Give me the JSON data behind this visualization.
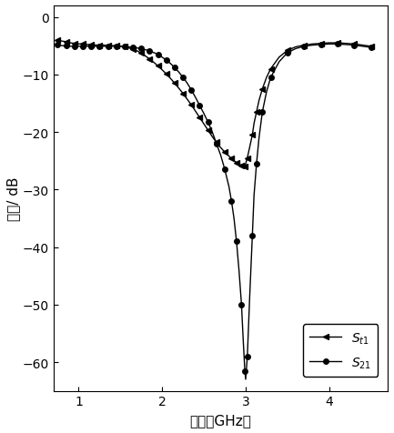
{
  "title": "",
  "xlabel": "频率（GHz）",
  "ylabel": "幅度/ dB",
  "xlim": [
    0.7,
    4.7
  ],
  "ylim": [
    -65,
    2
  ],
  "yticks": [
    0,
    -10,
    -20,
    -30,
    -40,
    -50,
    -60
  ],
  "xticks": [
    1,
    2,
    3,
    4
  ],
  "bg_color": "#ffffff",
  "line_color": "#000000",
  "legend_labels": [
    "$S_{t1}$",
    "$S_{21}$"
  ],
  "St1_x": [
    0.75,
    0.8,
    0.85,
    0.9,
    0.95,
    1.0,
    1.05,
    1.1,
    1.15,
    1.2,
    1.25,
    1.3,
    1.35,
    1.4,
    1.45,
    1.5,
    1.55,
    1.6,
    1.65,
    1.7,
    1.75,
    1.8,
    1.85,
    1.9,
    1.95,
    2.0,
    2.05,
    2.1,
    2.15,
    2.2,
    2.25,
    2.3,
    2.35,
    2.4,
    2.45,
    2.5,
    2.55,
    2.6,
    2.65,
    2.7,
    2.75,
    2.8,
    2.83,
    2.86,
    2.89,
    2.92,
    2.95,
    2.97,
    2.99,
    3.0,
    3.02,
    3.05,
    3.08,
    3.1,
    3.13,
    3.16,
    3.2,
    3.25,
    3.3,
    3.4,
    3.5,
    3.6,
    3.7,
    3.8,
    3.9,
    4.0,
    4.1,
    4.2,
    4.3,
    4.4,
    4.5
  ],
  "St1_y": [
    -4.0,
    -4.2,
    -4.3,
    -4.5,
    -4.6,
    -4.7,
    -4.7,
    -4.8,
    -4.8,
    -4.9,
    -4.9,
    -4.9,
    -5.0,
    -5.0,
    -5.0,
    -5.1,
    -5.2,
    -5.4,
    -5.6,
    -5.9,
    -6.3,
    -6.8,
    -7.3,
    -7.9,
    -8.5,
    -9.2,
    -9.9,
    -10.7,
    -11.5,
    -12.4,
    -13.3,
    -14.3,
    -15.3,
    -16.4,
    -17.5,
    -18.6,
    -19.7,
    -20.8,
    -21.8,
    -22.7,
    -23.5,
    -24.2,
    -24.6,
    -25.0,
    -25.3,
    -25.6,
    -25.8,
    -25.9,
    -26.0,
    -25.5,
    -24.5,
    -22.5,
    -20.5,
    -18.5,
    -16.5,
    -14.5,
    -12.5,
    -10.5,
    -9.0,
    -7.0,
    -5.8,
    -5.2,
    -4.9,
    -4.7,
    -4.6,
    -4.5,
    -4.5,
    -4.6,
    -4.7,
    -4.9,
    -5.1
  ],
  "S21_x": [
    0.75,
    0.8,
    0.85,
    0.9,
    0.95,
    1.0,
    1.05,
    1.1,
    1.15,
    1.2,
    1.25,
    1.3,
    1.35,
    1.4,
    1.45,
    1.5,
    1.55,
    1.6,
    1.65,
    1.7,
    1.75,
    1.8,
    1.85,
    1.9,
    1.95,
    2.0,
    2.05,
    2.1,
    2.15,
    2.2,
    2.25,
    2.3,
    2.35,
    2.4,
    2.45,
    2.5,
    2.55,
    2.6,
    2.65,
    2.7,
    2.75,
    2.8,
    2.83,
    2.86,
    2.89,
    2.92,
    2.95,
    2.97,
    2.99,
    3.0,
    3.02,
    3.05,
    3.08,
    3.1,
    3.13,
    3.16,
    3.2,
    3.25,
    3.3,
    3.4,
    3.5,
    3.6,
    3.7,
    3.8,
    3.9,
    4.0,
    4.1,
    4.2,
    4.3,
    4.4,
    4.5
  ],
  "S21_y": [
    -4.8,
    -5.0,
    -5.0,
    -5.1,
    -5.1,
    -5.1,
    -5.1,
    -5.1,
    -5.1,
    -5.1,
    -5.1,
    -5.1,
    -5.1,
    -5.1,
    -5.1,
    -5.1,
    -5.2,
    -5.2,
    -5.3,
    -5.4,
    -5.5,
    -5.7,
    -5.9,
    -6.2,
    -6.5,
    -7.0,
    -7.5,
    -8.1,
    -8.8,
    -9.6,
    -10.5,
    -11.5,
    -12.7,
    -14.0,
    -15.4,
    -16.8,
    -18.3,
    -20.0,
    -22.0,
    -24.0,
    -26.5,
    -29.5,
    -32.0,
    -35.0,
    -39.0,
    -44.0,
    -50.0,
    -56.0,
    -61.5,
    -63.0,
    -59.0,
    -48.0,
    -38.0,
    -31.0,
    -25.5,
    -21.0,
    -16.5,
    -13.0,
    -10.5,
    -7.8,
    -6.2,
    -5.5,
    -5.1,
    -4.9,
    -4.8,
    -4.7,
    -4.7,
    -4.8,
    -4.9,
    -5.1,
    -5.3
  ]
}
